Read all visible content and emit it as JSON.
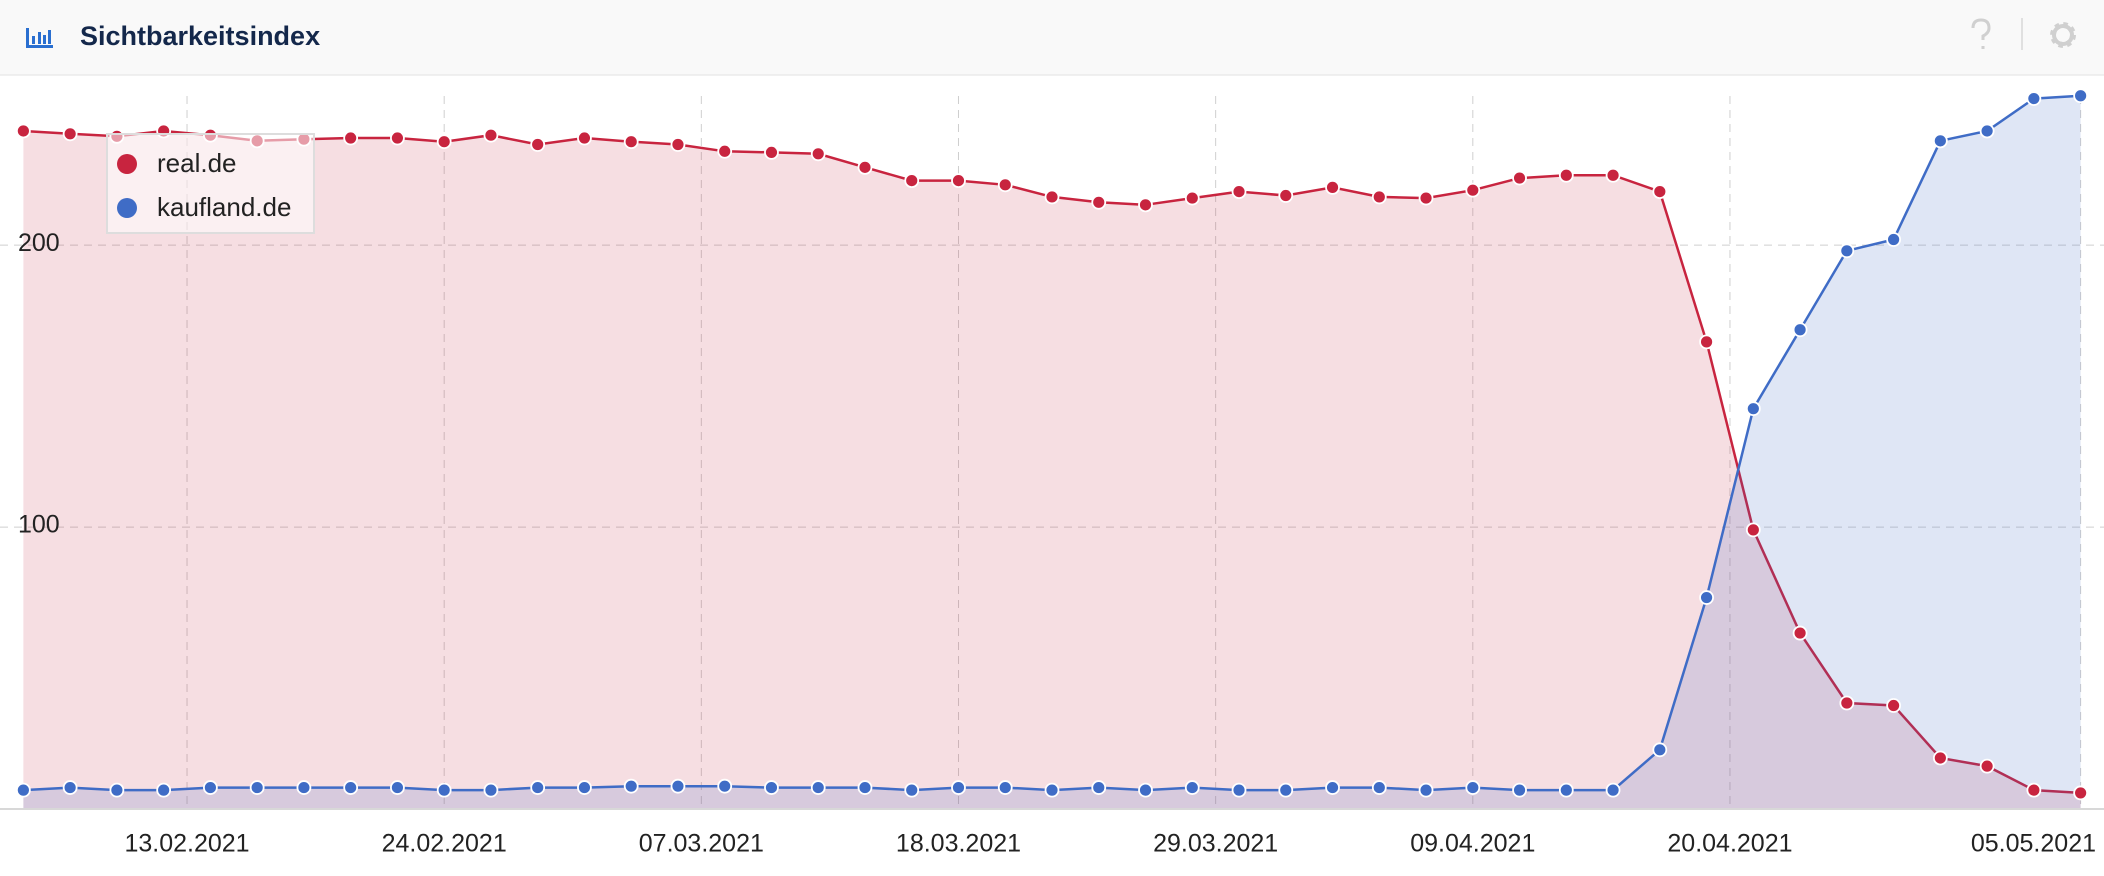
{
  "chart_data": {
    "type": "area",
    "title": "Sichtbarkeitsindex",
    "x": [
      "06.02.2021",
      "08.02.2021",
      "10.02.2021",
      "12.02.2021",
      "14.02.2021",
      "16.02.2021",
      "18.02.2021",
      "20.02.2021",
      "22.02.2021",
      "24.02.2021",
      "26.02.2021",
      "28.02.2021",
      "02.03.2021",
      "04.03.2021",
      "06.03.2021",
      "08.03.2021",
      "10.03.2021",
      "12.03.2021",
      "14.03.2021",
      "16.03.2021",
      "18.03.2021",
      "20.03.2021",
      "22.03.2021",
      "24.03.2021",
      "26.03.2021",
      "28.03.2021",
      "30.03.2021",
      "01.04.2021",
      "03.04.2021",
      "05.04.2021",
      "07.04.2021",
      "09.04.2021",
      "11.04.2021",
      "13.04.2021",
      "15.04.2021",
      "17.04.2021",
      "19.04.2021",
      "21.04.2021",
      "23.04.2021",
      "25.04.2021",
      "27.04.2021",
      "29.04.2021",
      "01.05.2021",
      "03.05.2021",
      "05.05.2021"
    ],
    "series": [
      {
        "name": "real.de",
        "color": "#c8243f",
        "values": [
          240.5,
          239.5,
          238.6,
          240.5,
          239,
          237,
          237.6,
          238,
          238,
          236.7,
          239,
          235.7,
          238,
          236.7,
          235.7,
          233.3,
          232.9,
          232.4,
          227.6,
          222.9,
          222.9,
          221.4,
          217.1,
          215.2,
          214.3,
          216.7,
          219,
          217.6,
          220.5,
          217.1,
          216.7,
          219.5,
          223.8,
          224.8,
          224.8,
          219,
          165.7,
          99,
          62.4,
          37.6,
          36.7,
          18.1,
          15.2,
          6.7,
          5.7
        ]
      },
      {
        "name": "kaufland.de",
        "color": "#3f6cc6",
        "values": [
          6.7,
          7.6,
          6.7,
          6.7,
          7.6,
          7.6,
          7.6,
          7.6,
          7.6,
          6.7,
          6.7,
          7.6,
          7.6,
          8.1,
          8.1,
          8.1,
          7.6,
          7.6,
          7.6,
          6.7,
          7.6,
          7.6,
          6.7,
          7.6,
          6.7,
          7.6,
          6.7,
          6.7,
          7.6,
          7.6,
          6.7,
          7.6,
          6.7,
          6.7,
          6.7,
          21,
          75,
          142,
          170,
          198,
          202,
          237,
          240.5,
          252,
          253
        ]
      }
    ],
    "xlim": [
      "05.02.2021",
      "06.05.2021"
    ],
    "xticks": [
      "13.02.2021",
      "24.02.2021",
      "07.03.2021",
      "18.03.2021",
      "29.03.2021",
      "09.04.2021",
      "20.04.2021",
      "05.05.2021"
    ],
    "ylim": [
      0,
      260
    ],
    "yticks": [
      100,
      200
    ],
    "grid": true,
    "legend": "top-left"
  }
}
